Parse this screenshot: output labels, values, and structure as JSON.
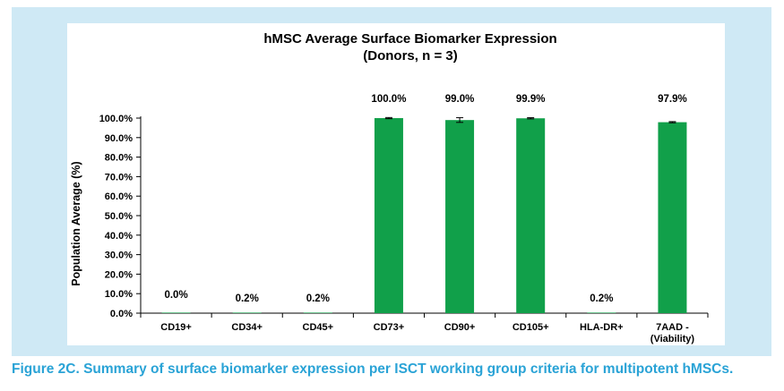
{
  "caption": "Figure 2C. Summary of surface biomarker expression per ISCT working group criteria for multipotent hMSCs.",
  "chart_data": {
    "type": "bar",
    "title": "hMSC Average Surface Biomarker Expression",
    "subtitle": "(Donors, n = 3)",
    "xlabel": "",
    "ylabel": "Population Average (%)",
    "ylim": [
      0,
      100
    ],
    "ytick_step": 10,
    "ytick_labels": [
      "0.0%",
      "10.0%",
      "20.0%",
      "30.0%",
      "40.0%",
      "50.0%",
      "60.0%",
      "70.0%",
      "80.0%",
      "90.0%",
      "100.0%"
    ],
    "categories": [
      "CD19+",
      "CD34+",
      "CD45+",
      "CD73+",
      "CD90+",
      "CD105+",
      "HLA-DR+",
      "7AAD - (Viability)"
    ],
    "category_lines": [
      [
        "CD19+"
      ],
      [
        "CD34+"
      ],
      [
        "CD45+"
      ],
      [
        "CD73+"
      ],
      [
        "CD90+"
      ],
      [
        "CD105+"
      ],
      [
        "HLA-DR+"
      ],
      [
        "7AAD -",
        "(Viability)"
      ]
    ],
    "values": [
      0.0,
      0.2,
      0.2,
      100.0,
      99.0,
      99.9,
      0.2,
      97.9
    ],
    "data_labels": [
      "0.0%",
      "0.2%",
      "0.2%",
      "100.0%",
      "99.0%",
      "99.9%",
      "0.2%",
      "97.9%"
    ],
    "error": [
      0,
      0,
      0,
      0.3,
      1.2,
      0.3,
      0,
      0.3
    ],
    "bar_color": "#11a04a",
    "grid": false,
    "legend": "none"
  }
}
